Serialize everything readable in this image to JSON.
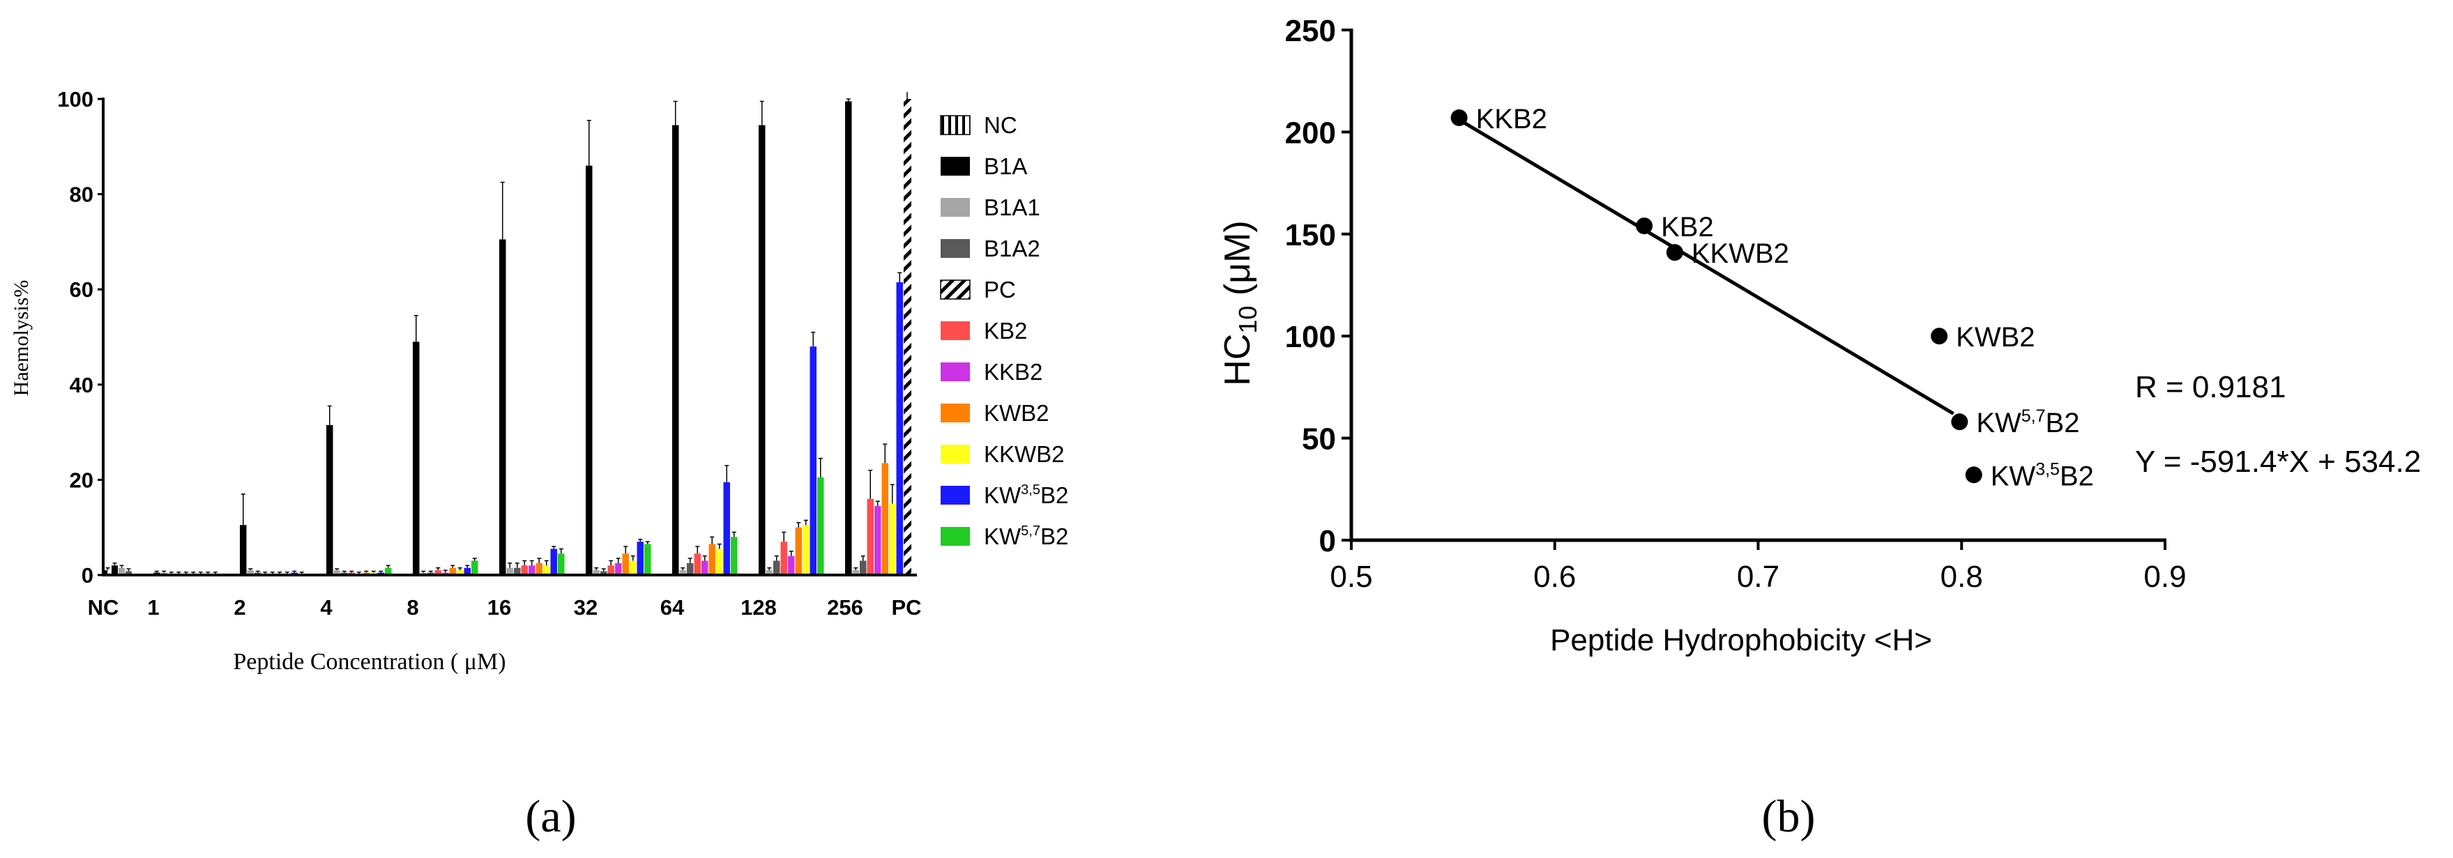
{
  "chart_data": [
    {
      "panel_label": "(a)",
      "type": "bar",
      "subtype": "grouped",
      "ylabel": "Haemolysis%",
      "xlabel": "Peptide Concentration ( μM)",
      "ylim": [
        0,
        100
      ],
      "yticks": [
        "0",
        "20",
        "40",
        "60",
        "80",
        "100"
      ],
      "categories": [
        "1",
        "2",
        "4",
        "8",
        "16",
        "32",
        "64",
        "128",
        "256"
      ],
      "control_labels": {
        "nc": "NC",
        "pc": "PC"
      },
      "nc_bars": [
        {
          "series": "NC",
          "value": 1.0
        },
        {
          "series": "B1A",
          "value": 2.0
        },
        {
          "series": "B1A1",
          "value": 1.5
        },
        {
          "series": "B1A2",
          "value": 0.8
        }
      ],
      "pc_value": 100,
      "series": [
        {
          "name": "B1A",
          "sup": "",
          "sub": "",
          "color": "#000000",
          "values": [
            0.5,
            10.5,
            31.5,
            49,
            70.5,
            86,
            94.5,
            94.5,
            99.5
          ],
          "errors": [
            0.3,
            6.5,
            4,
            5.5,
            12,
            9.5,
            5,
            5,
            0.5
          ]
        },
        {
          "name": "B1A1",
          "sup": "",
          "sub": "",
          "color": "#a6a6a6",
          "values": [
            0.5,
            1.0,
            1.0,
            0.5,
            1.5,
            1.0,
            1.0,
            1.0,
            1.0
          ],
          "errors": [
            0.3,
            0.3,
            0.3,
            0.3,
            1,
            0.5,
            0.5,
            0.5,
            0.5
          ]
        },
        {
          "name": "B1A2",
          "sup": "",
          "sub": "",
          "color": "#595959",
          "values": [
            0.3,
            0.5,
            0.5,
            0.5,
            1.5,
            0.8,
            2.5,
            3.0,
            3.0
          ],
          "errors": [
            0.3,
            0.3,
            0.3,
            0.3,
            1,
            0.5,
            1,
            1,
            1
          ]
        },
        {
          "name": "KB2",
          "sup": "",
          "sub": "",
          "color": "#ff4d4d",
          "values": [
            0.3,
            0.3,
            0.5,
            1.0,
            2.0,
            2.0,
            4.5,
            7.0,
            16.0
          ],
          "errors": [
            0.3,
            0.3,
            0.3,
            0.5,
            1,
            1,
            1.5,
            2,
            6
          ]
        },
        {
          "name": "KKB2",
          "sup": "",
          "sub": "",
          "color": "#cc33e6",
          "values": [
            0.3,
            0.3,
            0.3,
            0.5,
            2.0,
            2.5,
            3.0,
            4.0,
            14.5
          ],
          "errors": [
            0.3,
            0.3,
            0.3,
            0.5,
            1,
            1,
            1,
            1,
            1
          ]
        },
        {
          "name": "KWB2",
          "sup": "",
          "sub": "",
          "color": "#ff8000",
          "values": [
            0.3,
            0.3,
            0.5,
            1.5,
            2.5,
            4.5,
            6.5,
            10.0,
            23.5
          ],
          "errors": [
            0.3,
            0.3,
            0.3,
            0.5,
            1,
            1.5,
            1.5,
            1,
            4
          ]
        },
        {
          "name": "KKWB2",
          "sup": "",
          "sub": "",
          "color": "#ffff1a",
          "values": [
            0.3,
            0.3,
            0.5,
            1.0,
            2.0,
            3.0,
            5.5,
            10.5,
            15.0
          ],
          "errors": [
            0.3,
            0.3,
            0.3,
            0.5,
            1,
            1,
            1,
            1,
            4
          ]
        },
        {
          "name": "KW",
          "sup": "3,5",
          "sub": "B2",
          "color": "#1a1aff",
          "values": [
            0.3,
            0.5,
            0.5,
            1.5,
            5.5,
            7.0,
            19.5,
            48.0,
            61.5
          ],
          "errors": [
            0.3,
            0.3,
            0.3,
            0.5,
            0.5,
            0.5,
            3.5,
            3,
            2
          ]
        },
        {
          "name": "KW",
          "sup": "5,7",
          "sub": "B2",
          "color": "#22cc22",
          "values": [
            0.3,
            0.3,
            1.5,
            3.0,
            4.5,
            6.5,
            8.0,
            20.5,
            24.5
          ],
          "errors": [
            0.3,
            0.3,
            0.5,
            0.5,
            1,
            0.5,
            1,
            4,
            0.5
          ]
        }
      ],
      "legend": [
        {
          "key": "nc",
          "name": "NC",
          "sup": "",
          "sub": "",
          "pattern": "vbars"
        },
        {
          "key": "b1a",
          "name": "B1A",
          "sup": "",
          "sub": "",
          "color": "#000000"
        },
        {
          "key": "b1a1",
          "name": "B1A1",
          "sup": "",
          "sub": "",
          "color": "#a6a6a6"
        },
        {
          "key": "b1a2",
          "name": "B1A2",
          "sup": "",
          "sub": "",
          "color": "#595959"
        },
        {
          "key": "pc",
          "name": "PC",
          "sup": "",
          "sub": "",
          "pattern": "diag"
        },
        {
          "key": "kb2",
          "name": "KB2",
          "sup": "",
          "sub": "",
          "color": "#ff4d4d"
        },
        {
          "key": "kkb2",
          "name": "KKB2",
          "sup": "",
          "sub": "",
          "color": "#cc33e6"
        },
        {
          "key": "kwb2",
          "name": "KWB2",
          "sup": "",
          "sub": "",
          "color": "#ff8000"
        },
        {
          "key": "kkwb2",
          "name": "KKWB2",
          "sup": "",
          "sub": "",
          "color": "#ffff1a"
        },
        {
          "key": "kw35b2",
          "name": "KW",
          "sup": "3,5",
          "sub": "B2",
          "color": "#1a1aff"
        },
        {
          "key": "kw57b2",
          "name": "KW",
          "sup": "5,7",
          "sub": "B2",
          "color": "#22cc22"
        }
      ],
      "legend_placement": "right"
    },
    {
      "panel_label": "(b)",
      "type": "scatter",
      "with_regression_line": true,
      "xlabel": "Peptide Hydrophobicity <H>",
      "ylabel_main": "HC",
      "ylabel_sub": "10",
      "ylabel_unit": " (μM)",
      "xlim": [
        0.5,
        0.9
      ],
      "ylim": [
        0,
        250
      ],
      "xticks": [
        "0.5",
        "0.6",
        "0.7",
        "0.8",
        "0.9"
      ],
      "yticks": [
        "0",
        "50",
        "100",
        "150",
        "200",
        "250"
      ],
      "points": [
        {
          "x": 0.553,
          "y": 207,
          "label": "KKB2",
          "sup": "",
          "sub": ""
        },
        {
          "x": 0.644,
          "y": 154,
          "label": "KB2",
          "sup": "",
          "sub": ""
        },
        {
          "x": 0.659,
          "y": 141,
          "label": "KKWB2",
          "sup": "",
          "sub": ""
        },
        {
          "x": 0.789,
          "y": 100,
          "label": "KWB2",
          "sup": "",
          "sub": ""
        },
        {
          "x": 0.799,
          "y": 58,
          "label": "KW",
          "sup": "5,7",
          "sub": "B2"
        },
        {
          "x": 0.806,
          "y": 32,
          "label": "KW",
          "sup": "3,5",
          "sub": "B2"
        }
      ],
      "regression": {
        "x_start": 0.553,
        "y_start": 206,
        "x_end": 0.796,
        "y_end": 62
      },
      "annotations": [
        "R = 0.9181",
        "Y = -591.4*X + 534.2"
      ]
    }
  ]
}
